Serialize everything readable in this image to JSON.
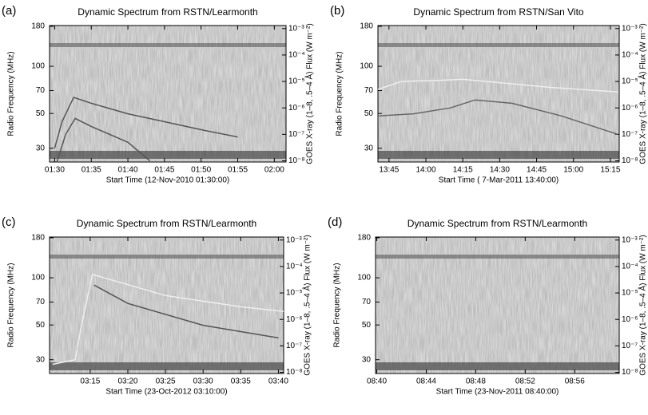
{
  "chart_data": [
    {
      "type": "spectrogram",
      "panel_label": "(a)",
      "title": "Dynamic Spectrum from RSTN/Learmonth",
      "xlabel": "Start Time (12-Nov-2010 01:30:00)",
      "ylabel": "Radio Frequency (MHz)",
      "y2label": "GOES X-ray (1–8, .5–4 Å) Flux (W m⁻²)",
      "xlim": [
        -0.7,
        31.6
      ],
      "xticks": [
        {
          "value": 0,
          "label": "01:30"
        },
        {
          "value": 5,
          "label": "01:35"
        },
        {
          "value": 10,
          "label": "01:40"
        },
        {
          "value": 15,
          "label": "01:45"
        },
        {
          "value": 20,
          "label": "01:50"
        },
        {
          "value": 25,
          "label": "01:55"
        },
        {
          "value": 30,
          "label": "02:00"
        }
      ],
      "ylim": [
        24.5,
        182
      ],
      "yticks": [
        30,
        50,
        70,
        100,
        180
      ],
      "ylog": true,
      "y2lim": [
        9e-09,
        0.0013
      ],
      "y2log": true,
      "y2ticks": [
        {
          "value": 0.001,
          "label": "10⁻³"
        },
        {
          "value": 0.0001,
          "label": "10⁻⁴"
        },
        {
          "value": 1e-05,
          "label": "10⁻⁵"
        },
        {
          "value": 1e-06,
          "label": "10⁻⁶"
        },
        {
          "value": 1e-07,
          "label": "10⁻⁷"
        },
        {
          "value": 1e-08,
          "label": "10⁻⁸"
        }
      ],
      "series": [
        {
          "color": "#555555",
          "axis": "y2",
          "x": [
            0,
            1,
            2.6,
            5,
            10,
            15,
            20,
            25
          ],
          "values": [
            3e-08,
            3e-07,
            2.5e-06,
            1.5e-06,
            6e-07,
            3e-07,
            1.5e-07,
            8e-08
          ]
        },
        {
          "color": "#555555",
          "axis": "y2",
          "x": [
            0.3,
            1.5,
            2.8,
            5,
            10,
            13
          ],
          "values": [
            9e-09,
            1e-07,
            4e-07,
            2e-07,
            5e-08,
            1e-08
          ]
        }
      ]
    },
    {
      "type": "spectrogram",
      "panel_label": "(b)",
      "title": "Dynamic Spectrum from RSTN/San Vito",
      "xlabel": "Start Time ( 7-Mar-2011 13:40:00)",
      "ylabel": "Radio Frequency (MHz)",
      "y2label": "GOES X-ray (1–8, .5–4 Å) Flux (W m⁻²)",
      "xlim": [
        0.5,
        98.6
      ],
      "xticks": [
        {
          "value": 5,
          "label": "13:45"
        },
        {
          "value": 20,
          "label": "14:00"
        },
        {
          "value": 35,
          "label": "14:15"
        },
        {
          "value": 50,
          "label": "14:30"
        },
        {
          "value": 65,
          "label": "14:45"
        },
        {
          "value": 80,
          "label": "15:00"
        },
        {
          "value": 95,
          "label": "15:15"
        }
      ],
      "ylim": [
        24.5,
        182
      ],
      "yticks": [
        30,
        50,
        70,
        100,
        180
      ],
      "ylog": true,
      "y2lim": [
        9e-09,
        0.0013
      ],
      "y2log": true,
      "y2ticks": [
        {
          "value": 0.001,
          "label": "10⁻³"
        },
        {
          "value": 0.0001,
          "label": "10⁻⁴"
        },
        {
          "value": 1e-05,
          "label": "10⁻⁵"
        },
        {
          "value": 1e-06,
          "label": "10⁻⁶"
        },
        {
          "value": 1e-07,
          "label": "10⁻⁷"
        },
        {
          "value": 1e-08,
          "label": "10⁻⁸"
        }
      ],
      "series": [
        {
          "color": "#eeeeee",
          "axis": "y2",
          "x": [
            0.5,
            10,
            25,
            35,
            50,
            70,
            98
          ],
          "values": [
            5e-06,
            1e-05,
            1.1e-05,
            1.2e-05,
            9e-06,
            6e-06,
            4e-06
          ]
        },
        {
          "color": "#666666",
          "axis": "y2",
          "x": [
            0.5,
            15,
            30,
            40,
            55,
            75,
            98
          ],
          "values": [
            5e-07,
            6e-07,
            1e-06,
            2e-06,
            1.5e-06,
            5e-07,
            1e-07
          ]
        }
      ]
    },
    {
      "type": "spectrogram",
      "panel_label": "(c)",
      "title": "Dynamic Spectrum from RSTN/Learmonth",
      "xlabel": "Start Time (23-Oct-2012 03:10:00)",
      "ylabel": "Radio Frequency (MHz)",
      "y2label": "GOES X-ray (1–8, .5–4 Å) Flux (W m⁻²)",
      "xlim": [
        -0.4,
        30.7
      ],
      "xticks": [
        {
          "value": 5,
          "label": "03:15"
        },
        {
          "value": 10,
          "label": "03:20"
        },
        {
          "value": 15,
          "label": "03:25"
        },
        {
          "value": 20,
          "label": "03:30"
        },
        {
          "value": 25,
          "label": "03:35"
        },
        {
          "value": 30,
          "label": "03:40"
        }
      ],
      "ylim": [
        24.5,
        182
      ],
      "yticks": [
        30,
        50,
        70,
        100,
        180
      ],
      "ylog": true,
      "y2lim": [
        9e-09,
        0.0013
      ],
      "y2log": true,
      "y2ticks": [
        {
          "value": 0.001,
          "label": "10⁻³"
        },
        {
          "value": 0.0001,
          "label": "10⁻⁴"
        },
        {
          "value": 1e-05,
          "label": "10⁻⁵"
        },
        {
          "value": 1e-06,
          "label": "10⁻⁶"
        },
        {
          "value": 1e-07,
          "label": "10⁻⁷"
        },
        {
          "value": 1e-08,
          "label": "10⁻⁸"
        }
      ],
      "series": [
        {
          "color": "#eeeeee",
          "axis": "y2",
          "x": [
            0,
            3,
            4,
            5.3,
            8,
            15,
            25,
            30.7
          ],
          "values": [
            2e-08,
            3e-08,
            1e-06,
            5e-05,
            3e-05,
            8e-06,
            3e-06,
            2e-06
          ]
        },
        {
          "color": "#555555",
          "axis": "y2",
          "x": [
            5.5,
            10,
            20,
            30
          ],
          "values": [
            2e-05,
            4e-06,
            6e-07,
            2e-07
          ]
        }
      ]
    },
    {
      "type": "spectrogram",
      "panel_label": "(d)",
      "title": "Dynamic Spectrum from RSTN/Learmonth",
      "xlabel": "Start Time (23-Nov-2011 08:40:00)",
      "ylabel": "Radio Frequency (MHz)",
      "y2label": "GOES X-ray (1–8, .5–4 Å) Flux (W m⁻²)",
      "xlim": [
        -0.1,
        19.6
      ],
      "xticks": [
        {
          "value": 0,
          "label": "08:40"
        },
        {
          "value": 4,
          "label": "08:44"
        },
        {
          "value": 8,
          "label": "08:48"
        },
        {
          "value": 12,
          "label": "08:52"
        },
        {
          "value": 16,
          "label": "08:56"
        }
      ],
      "ylim": [
        24.5,
        182
      ],
      "yticks": [
        30,
        50,
        70,
        100,
        180
      ],
      "ylog": true,
      "y2lim": [
        9e-09,
        0.0013
      ],
      "y2log": true,
      "y2ticks": [
        {
          "value": 0.001,
          "label": "10⁻³"
        },
        {
          "value": 0.0001,
          "label": "10⁻⁴"
        },
        {
          "value": 1e-05,
          "label": "10⁻⁵"
        },
        {
          "value": 1e-06,
          "label": "10⁻⁶"
        },
        {
          "value": 1e-07,
          "label": "10⁻⁷"
        },
        {
          "value": 1e-08,
          "label": "10⁻⁸"
        }
      ],
      "series": []
    }
  ]
}
